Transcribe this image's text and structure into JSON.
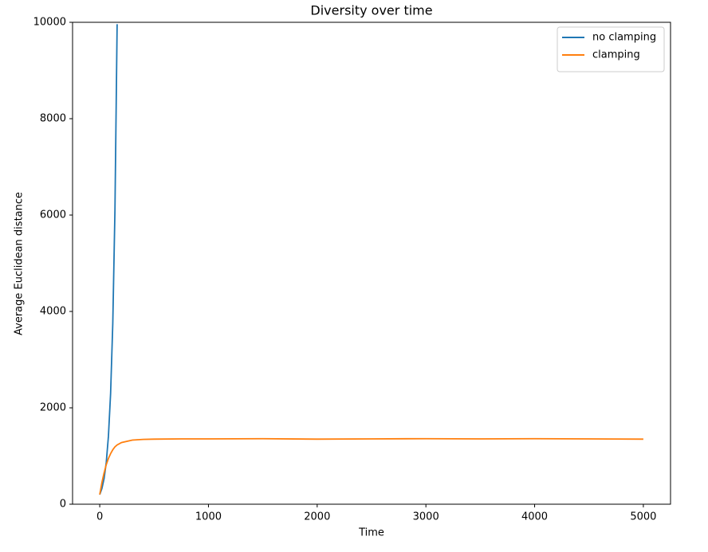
{
  "chart_data": {
    "type": "line",
    "title": "Diversity over time",
    "x_label": "Time",
    "y_label": "Average Euclidean distance",
    "x": [
      0,
      20,
      40,
      60,
      80,
      100,
      120,
      140,
      160,
      200,
      300,
      400,
      500,
      750,
      1000,
      1500,
      2000,
      2500,
      3000,
      3500,
      4000,
      4500,
      5000
    ],
    "series": [
      {
        "name": "no clamping",
        "color": "#1f77b4",
        "values": [
          200,
          326,
          531,
          866,
          1412,
          2300,
          3750,
          6110,
          9960,
          null,
          null,
          null,
          null,
          null,
          null,
          null,
          null,
          null,
          null,
          null,
          null,
          null,
          null
        ]
      },
      {
        "name": "clamping",
        "color": "#ff7f0e",
        "values": [
          200,
          450,
          650,
          820,
          950,
          1050,
          1130,
          1190,
          1230,
          1280,
          1330,
          1345,
          1350,
          1355,
          1355,
          1360,
          1350,
          1355,
          1360,
          1355,
          1360,
          1355,
          1350
        ]
      }
    ],
    "xlim": [
      -250,
      5250
    ],
    "ylim": [
      0,
      10000
    ],
    "xticks": [
      0,
      1000,
      2000,
      3000,
      4000,
      5000
    ],
    "yticks": [
      0,
      2000,
      4000,
      6000,
      8000,
      10000
    ],
    "grid": false,
    "legend": "upper right"
  }
}
